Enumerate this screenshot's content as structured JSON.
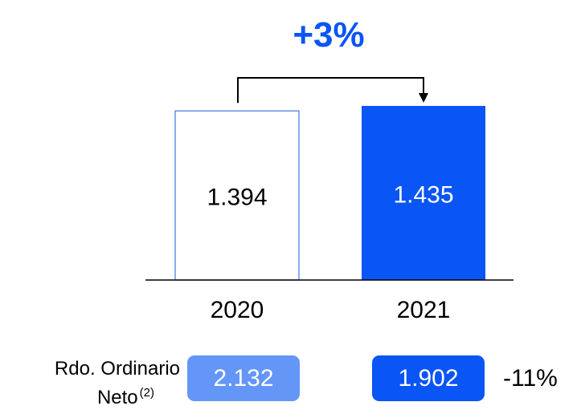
{
  "chart_data": {
    "type": "bar",
    "categories": [
      "2020",
      "2021"
    ],
    "values": [
      1394,
      1435
    ],
    "value_labels": [
      "1.394",
      "1.435"
    ],
    "ylim": [
      0,
      1435
    ],
    "growth_label": "+3%",
    "colors": {
      "bar_2021": "#0A55F5",
      "bar_2020_border": "#3F74E0",
      "growth": "#0A55F5",
      "axis": "#000000"
    }
  },
  "ordinary_net": {
    "label_line1": "Rdo. Ordinario",
    "label_line2": "Neto",
    "footnote": "(2)",
    "values": [
      "2.132",
      "1.902"
    ],
    "colors": [
      "#6496F7",
      "#0A55F5"
    ],
    "change": "-11%"
  }
}
